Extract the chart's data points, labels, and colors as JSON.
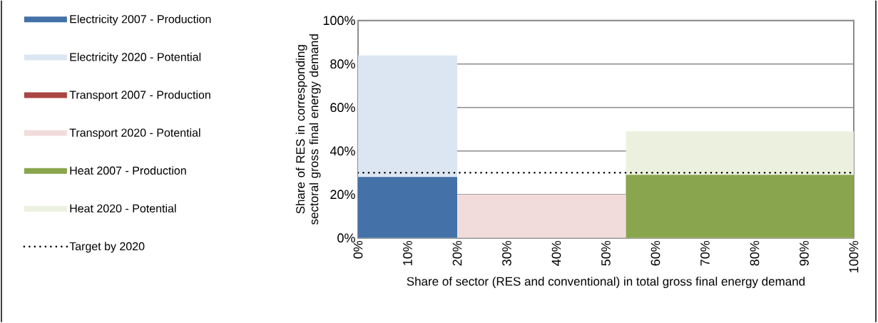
{
  "chart_data": {
    "type": "area",
    "xlabel": "Share of sector (RES and conventional) in total gross final energy demand",
    "ylabel": "Share of RES in corresponding sectoral gross final energy demand",
    "series": [
      {
        "name": "Electricity 2007 - Production",
        "color": "#4472a8",
        "x": [
          0,
          20
        ],
        "values": [
          28,
          28
        ]
      },
      {
        "name": "Electricity 2020 - Potential",
        "color": "#dce6f2",
        "x": [
          0,
          20
        ],
        "values": [
          84,
          84
        ]
      },
      {
        "name": "Transport 2007 - Production",
        "color": "#aa4643",
        "values": [
          null,
          null
        ]
      },
      {
        "name": "Transport 2020 - Potential",
        "color": "#f2dcdb",
        "x": [
          20,
          54
        ],
        "values": [
          20,
          20
        ]
      },
      {
        "name": "Heat 2007 - Production",
        "color": "#89a54e",
        "x": [
          54,
          100
        ],
        "values": [
          29,
          29
        ]
      },
      {
        "name": "Heat 2020 - Potential",
        "color": "#ebf1de",
        "x": [
          54,
          100
        ],
        "values": [
          49,
          49
        ]
      }
    ],
    "ref_lines": [
      {
        "axis": "y",
        "value": 30,
        "label": "Target by 2020",
        "color": "#000000",
        "line_style": "dotted"
      }
    ],
    "xlim": [
      0,
      100
    ],
    "ylim": [
      0,
      100
    ],
    "xticks": [
      {
        "value": 0,
        "label": "0%"
      },
      {
        "value": 10,
        "label": "10%"
      },
      {
        "value": 20,
        "label": "20%"
      },
      {
        "value": 30,
        "label": "30%"
      },
      {
        "value": 40,
        "label": "40%"
      },
      {
        "value": 50,
        "label": "50%"
      },
      {
        "value": 60,
        "label": "60%"
      },
      {
        "value": 70,
        "label": "70%"
      },
      {
        "value": 80,
        "label": "80%"
      },
      {
        "value": 90,
        "label": "90%"
      },
      {
        "value": 100,
        "label": "100%"
      }
    ],
    "yticks": [
      {
        "value": 0,
        "label": "0%"
      },
      {
        "value": 20,
        "label": "20%"
      },
      {
        "value": 40,
        "label": "40%"
      },
      {
        "value": 60,
        "label": "60%"
      },
      {
        "value": 80,
        "label": "80%"
      },
      {
        "value": 100,
        "label": "100%"
      }
    ],
    "grid": "y",
    "legend": "left"
  }
}
